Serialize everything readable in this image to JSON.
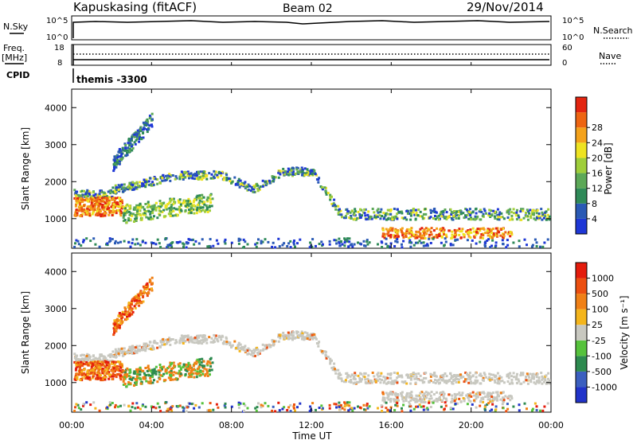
{
  "header": {
    "station": "Kapuskasing (fitACF)",
    "beam": "Beam 02",
    "date": "29/Nov/2014"
  },
  "strip_panels": {
    "nsky": {
      "label": "N.Sky",
      "ticks": [
        "10^5",
        "10^0"
      ]
    },
    "nsearch": {
      "label": "N.Search",
      "ticks": [
        "10^5",
        "10^0"
      ]
    },
    "freq": {
      "label_line1": "Freq.",
      "label_line2": "[MHz]",
      "ticks": [
        "18",
        "8"
      ]
    },
    "nave": {
      "label": "Nave",
      "ticks": [
        "60",
        "0"
      ]
    },
    "cpid": {
      "label": "CPID",
      "value": "themis -3300"
    }
  },
  "chart_data": [
    {
      "type": "heatmap",
      "name": "power",
      "ylabel": "Slant Range [km]",
      "xlabel": "",
      "y_ticks": [
        1000,
        2000,
        3000,
        4000
      ],
      "ylim": [
        200,
        4500
      ],
      "colorbar": {
        "label": "Power [dB]",
        "ticks": [
          4,
          8,
          12,
          16,
          20,
          24,
          28
        ],
        "colors": [
          "#1e37d6",
          "#2a5ab5",
          "#2f8a58",
          "#5ca857",
          "#9fce3a",
          "#eee321",
          "#f4a21b",
          "#ee6512",
          "#e32510"
        ]
      }
    },
    {
      "type": "heatmap",
      "name": "velocity",
      "ylabel": "Slant Range [km]",
      "xlabel": "Time UT",
      "x_ticks": [
        "00:00",
        "04:00",
        "08:00",
        "12:00",
        "16:00",
        "20:00",
        "00:00"
      ],
      "y_ticks": [
        1000,
        2000,
        3000,
        4000
      ],
      "ylim": [
        200,
        4500
      ],
      "colorbar": {
        "label": "Velocity [m s⁻¹]",
        "ticks": [
          "1000",
          "500",
          "100",
          "25",
          "-25",
          "-100",
          "-500",
          "-1000"
        ],
        "colors": [
          "#2133c9",
          "#3b5fbf",
          "#2d8a4f",
          "#56c23c",
          "#c8c8c0",
          "#f4b51c",
          "#f08016",
          "#ec4f10",
          "#e41c0c"
        ]
      }
    }
  ]
}
